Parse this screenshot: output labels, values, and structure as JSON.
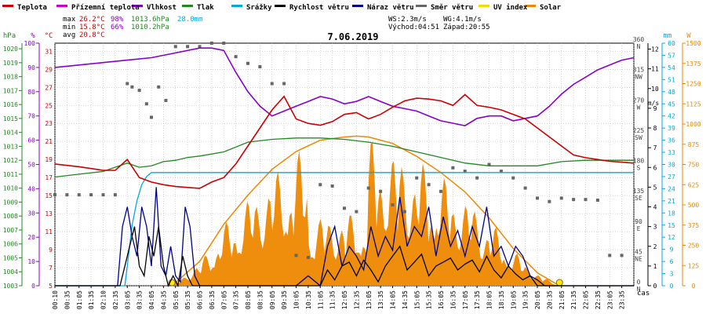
{
  "legend": [
    {
      "label": "Teplota",
      "color": "#cc0000"
    },
    {
      "label": "Přízemní teplota",
      "color": "#cc00cc"
    },
    {
      "label": "Vlhkost",
      "color": "#8800cc"
    },
    {
      "label": "Tlak",
      "color": "#228822"
    },
    {
      "label": "Srážky",
      "color": "#00aadd"
    },
    {
      "label": "Rychlost větru",
      "color": "#000000"
    },
    {
      "label": "Náraz větru",
      "color": "#000088"
    },
    {
      "label": "Směr větru",
      "color": "#666666"
    },
    {
      "label": "UV index",
      "color": "#eedd00"
    },
    {
      "label": "Solar",
      "color": "#ee8800"
    }
  ],
  "stats": {
    "max_label": "max",
    "max_temp": "26.2°C",
    "max_hum": "98%",
    "max_press": "1013.6hPa",
    "max_rain": "28.0mm",
    "min_label": "min",
    "min_temp": "15.8°C",
    "min_hum": "66%",
    "min_press": "1010.2hPa",
    "avg_label": "avg",
    "avg_temp": "20.8°C",
    "ws": "WS:2.3m/s",
    "wg": "WG:4.1m/s",
    "sunrise": "Východ:04:51",
    "sunset": "Západ:20:55"
  },
  "units": {
    "hpa": "hPa",
    "pct": "%",
    "degc": "°C",
    "ms": "m/s",
    "mm": "mm",
    "w": "W",
    "time": "čas"
  },
  "chart_data": {
    "type": "line",
    "title": "7.06.2019",
    "x_ticks": [
      "00:10",
      "00:35",
      "01:05",
      "01:35",
      "02:10",
      "02:35",
      "03:05",
      "03:35",
      "04:05",
      "04:35",
      "05:05",
      "05:35",
      "06:05",
      "06:35",
      "07:05",
      "07:35",
      "08:05",
      "08:35",
      "09:05",
      "09:35",
      "10:05",
      "10:35",
      "11:05",
      "11:35",
      "12:05",
      "12:35",
      "13:05",
      "13:35",
      "14:05",
      "14:35",
      "15:05",
      "15:35",
      "16:05",
      "16:35",
      "17:05",
      "17:35",
      "18:05",
      "18:35",
      "19:05",
      "19:35",
      "20:05",
      "20:35",
      "21:05",
      "21:35",
      "22:05",
      "22:35",
      "23:05",
      "23:35"
    ],
    "axes": {
      "pressure_hpa": {
        "ticks": [
          1003,
          1004,
          1005,
          1006,
          1007,
          1008,
          1009,
          1010,
          1011,
          1012,
          1013,
          1014,
          1015,
          1016,
          1017,
          1018,
          1019,
          1020
        ]
      },
      "humidity_pct": {
        "ticks": [
          0,
          10,
          20,
          30,
          40,
          50,
          60,
          70,
          80,
          90,
          100
        ]
      },
      "temperature_c": {
        "ticks": [
          5,
          7,
          9,
          11,
          13,
          15,
          17,
          19,
          21,
          23,
          25,
          27,
          29,
          31
        ]
      },
      "wind_dir": {
        "ticks": [
          "0 N",
          "45 NE",
          "90 E",
          "135 SE",
          "180 S",
          "225 SW",
          "270 W",
          "315 NW",
          "360 N"
        ]
      },
      "wind_speed_ms": {
        "ticks": [
          0,
          1,
          2,
          3,
          4,
          5,
          6,
          7,
          8,
          9,
          10,
          11,
          12
        ]
      },
      "rain_mm": {
        "ticks": [
          0,
          3,
          6,
          9,
          12,
          15,
          18,
          21,
          24,
          27,
          30,
          33,
          36,
          39,
          42,
          45,
          48,
          51,
          54,
          57,
          60
        ]
      },
      "solar_w": {
        "ticks": [
          0,
          125,
          250,
          375,
          500,
          625,
          750,
          875,
          1000,
          1125,
          1250,
          1375,
          1500
        ]
      }
    },
    "series": [
      {
        "name": "Teplota",
        "unit": "°C",
        "color": "#cc0000",
        "x": [
          0,
          1,
          1.5,
          2,
          2.5,
          3,
          3.5,
          4,
          4.5,
          5,
          5.5,
          6,
          6.5,
          7,
          7.5,
          8,
          8.5,
          9,
          9.5,
          10,
          10.5,
          11,
          11.5,
          12,
          12.5,
          13,
          13.5,
          14,
          14.5,
          15,
          15.5,
          16,
          16.5,
          17,
          17.5,
          18,
          18.5,
          19,
          19.5,
          20,
          20.5,
          21,
          21.5,
          22,
          22.5,
          23,
          23.5,
          24
        ],
        "y": [
          18.5,
          18.2,
          18.0,
          17.8,
          17.8,
          19.0,
          17.0,
          16.5,
          16.2,
          16.0,
          15.9,
          15.8,
          16.5,
          17.0,
          18.5,
          20.5,
          22.5,
          24.5,
          26.0,
          23.5,
          23.0,
          22.8,
          23.2,
          24.0,
          24.2,
          23.5,
          24.0,
          24.8,
          25.5,
          25.8,
          25.7,
          25.5,
          25.0,
          26.2,
          25.0,
          24.8,
          24.5,
          24.0,
          23.5,
          22.5,
          21.5,
          20.5,
          19.5,
          19.2,
          19.0,
          18.8,
          18.7,
          18.6
        ]
      },
      {
        "name": "Vlhkost",
        "unit": "%",
        "color": "#8800cc",
        "x": [
          0,
          1,
          2,
          3,
          4,
          5,
          6,
          6.5,
          7,
          7.5,
          8,
          8.5,
          9,
          9.5,
          10,
          10.5,
          11,
          11.5,
          12,
          12.5,
          13,
          13.5,
          14,
          14.5,
          15,
          15.5,
          16,
          16.5,
          17,
          17.5,
          18,
          18.5,
          19,
          19.5,
          20,
          20.5,
          21,
          21.5,
          22,
          22.5,
          23,
          23.5,
          24
        ],
        "y": [
          90,
          91,
          92,
          93,
          94,
          96,
          98,
          98,
          97,
          88,
          80,
          74,
          70,
          72,
          74,
          76,
          78,
          77,
          75,
          76,
          78,
          76,
          74,
          73,
          72,
          70,
          68,
          67,
          66,
          69,
          70,
          70,
          68,
          69,
          70,
          74,
          79,
          83,
          86,
          89,
          91,
          93,
          94
        ]
      },
      {
        "name": "Tlak",
        "unit": "hPa",
        "color": "#228822",
        "x": [
          0,
          1,
          2,
          3,
          3.5,
          4,
          4.5,
          5,
          5.5,
          6,
          7,
          8,
          9,
          10,
          11,
          12,
          13,
          14,
          15,
          16,
          17,
          18,
          19,
          20,
          21,
          22,
          23,
          24
        ],
        "y": [
          1010.8,
          1011.0,
          1011.2,
          1011.8,
          1011.5,
          1011.6,
          1011.9,
          1012.0,
          1012.2,
          1012.3,
          1012.6,
          1013.3,
          1013.5,
          1013.6,
          1013.6,
          1013.5,
          1013.3,
          1013.0,
          1012.6,
          1012.2,
          1011.8,
          1011.6,
          1011.6,
          1011.6,
          1011.9,
          1012.0,
          1012.0,
          1012.0
        ]
      },
      {
        "name": "Srážky",
        "unit": "mm",
        "color": "#00aadd",
        "x": [
          0,
          2.9,
          3.0,
          3.2,
          3.4,
          3.6,
          3.8,
          4.0,
          24
        ],
        "y": [
          0,
          0,
          5,
          15,
          21,
          25,
          27,
          28,
          28
        ]
      },
      {
        "name": "Rychlost větru",
        "unit": "m/s",
        "color": "#000000",
        "x": [
          0,
          2.7,
          2.9,
          3.1,
          3.3,
          3.5,
          3.7,
          3.9,
          4.1,
          4.3,
          4.5,
          4.7,
          4.9,
          5.1,
          5.3,
          5.5,
          5.7,
          6,
          11,
          11.3,
          11.6,
          11.9,
          12.2,
          12.5,
          12.8,
          13.1,
          13.4,
          13.7,
          14,
          14.3,
          14.6,
          14.9,
          15.2,
          15.5,
          15.8,
          16.1,
          16.4,
          16.7,
          17,
          17.3,
          17.6,
          17.9,
          18.2,
          18.5,
          18.8,
          19.1,
          19.4,
          19.7,
          20,
          24
        ],
        "y": [
          0,
          0,
          1,
          2,
          3,
          1,
          0.5,
          2.5,
          1.5,
          3,
          1,
          0,
          0.5,
          0,
          1.5,
          0.5,
          0,
          0,
          0,
          0.8,
          0.3,
          1,
          1.2,
          0.5,
          1.3,
          0.8,
          0.2,
          1,
          1.5,
          2,
          0.8,
          1.2,
          1.6,
          0.5,
          1,
          1.2,
          1.4,
          0.8,
          1.1,
          1.3,
          0.7,
          1.5,
          0.8,
          0.4,
          1,
          0.6,
          0.3,
          0.5,
          0,
          0
        ]
      },
      {
        "name": "Náraz větru",
        "unit": "m/s",
        "color": "#000088",
        "x": [
          0,
          2.6,
          2.8,
          3.0,
          3.2,
          3.4,
          3.6,
          3.8,
          4.0,
          4.2,
          4.4,
          4.6,
          4.8,
          5.0,
          5.2,
          5.4,
          5.6,
          5.8,
          6,
          10,
          10.5,
          11,
          11.3,
          11.6,
          11.9,
          12.2,
          12.5,
          12.8,
          13.1,
          13.4,
          13.7,
          14,
          14.3,
          14.6,
          14.9,
          15.2,
          15.5,
          15.8,
          16.1,
          16.4,
          16.7,
          17,
          17.3,
          17.6,
          17.9,
          18.2,
          18.5,
          18.8,
          19.1,
          19.4,
          19.7,
          20,
          20.3,
          24
        ],
        "y": [
          0,
          0,
          3,
          4,
          2.5,
          1.5,
          4,
          3,
          1,
          5,
          1,
          0.5,
          2,
          0.5,
          0.2,
          4,
          3,
          0.5,
          0,
          0,
          0.5,
          0,
          2,
          3,
          1,
          2,
          1.5,
          0.8,
          3,
          1.5,
          2.5,
          1.8,
          4.5,
          2,
          3,
          2.5,
          4,
          1.5,
          3.5,
          2,
          2.8,
          1.5,
          3,
          2,
          4,
          1.5,
          2,
          1,
          2,
          1.5,
          0.5,
          0.3,
          0,
          0
        ]
      },
      {
        "name": "Solar",
        "unit": "W",
        "color": "#ee8800",
        "x": [
          4.85,
          6,
          7,
          8,
          9,
          10,
          11,
          12,
          12.5,
          13,
          14,
          15,
          16,
          17,
          18,
          19,
          20,
          20.92
        ],
        "y": [
          0,
          150,
          380,
          560,
          720,
          830,
          900,
          920,
          925,
          920,
          880,
          800,
          700,
          580,
          420,
          230,
          80,
          0
        ]
      },
      {
        "name": "Směr větru",
        "unit": "°",
        "color": "#666666",
        "x": [
          0,
          0.5,
          1,
          1.5,
          2,
          2.5,
          3,
          3.2,
          3.5,
          3.8,
          4,
          4.3,
          4.6,
          5,
          5.5,
          6,
          6.5,
          7,
          7.5,
          8,
          8.5,
          9,
          9.5,
          10,
          10.5,
          11,
          11.5,
          12,
          12.5,
          13,
          13.5,
          14,
          14.5,
          15,
          15.5,
          16,
          16.5,
          17,
          17.5,
          18,
          18.5,
          19,
          19.5,
          20,
          20.5,
          21,
          21.5,
          22,
          22.5,
          23,
          23.5
        ],
        "y": [
          135,
          135,
          135,
          135,
          135,
          135,
          300,
          295,
          290,
          270,
          250,
          295,
          275,
          355,
          355,
          355,
          360,
          360,
          340,
          330,
          325,
          300,
          300,
          45,
          42,
          150,
          148,
          115,
          110,
          145,
          140,
          120,
          110,
          160,
          150,
          140,
          175,
          170,
          160,
          180,
          170,
          160,
          145,
          130,
          125,
          130,
          128,
          128,
          127,
          45,
          45
        ]
      }
    ]
  }
}
